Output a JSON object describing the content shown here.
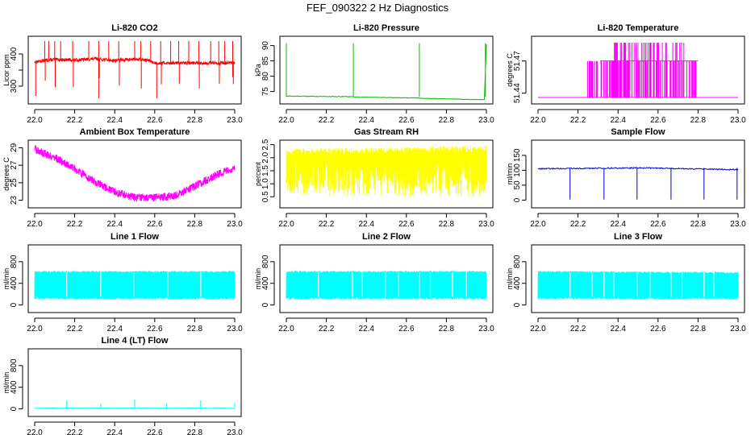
{
  "main_title": "FEF_090322  2 Hz Diagnostics",
  "chart_data": [
    {
      "type": "line",
      "title": "Li-820 CO2",
      "xlabel": "",
      "ylabel": "Licor ppm",
      "xlim": [
        22.0,
        23.0
      ],
      "ylim": [
        255,
        445
      ],
      "yticks": [
        300,
        350,
        400
      ],
      "ytick_labels": [
        "300",
        "",
        "400"
      ],
      "xticks": [
        22.0,
        22.2,
        22.4,
        22.6,
        22.8,
        23.0
      ],
      "xtick_labels": [
        "22.0",
        "22.2",
        "22.4",
        "22.6",
        "22.8",
        "23.0"
      ],
      "color": "#ff0000",
      "series": [
        {
          "name": "CO2",
          "x": [
            22.0,
            22.05,
            22.1,
            22.2,
            22.3,
            22.4,
            22.5,
            22.57,
            22.6,
            22.7,
            22.8,
            22.9,
            23.0
          ],
          "y": [
            375,
            380,
            383,
            381,
            385,
            380,
            384,
            380,
            372,
            372,
            372,
            372,
            372
          ]
        }
      ]
    },
    {
      "type": "line",
      "title": "Li-820 Pressure",
      "xlabel": "",
      "ylabel": "kPa",
      "xlim": [
        22.0,
        23.0
      ],
      "ylim": [
        72,
        92
      ],
      "yticks": [
        75,
        80,
        85,
        90
      ],
      "ytick_labels": [
        "75",
        "80",
        "85",
        "90"
      ],
      "xticks": [
        22.0,
        22.2,
        22.4,
        22.6,
        22.8,
        23.0
      ],
      "xtick_labels": [
        "22.0",
        "22.2",
        "22.4",
        "22.6",
        "22.8",
        "23.0"
      ],
      "color": "#00bb00",
      "series": [
        {
          "name": "Pressure",
          "x": [
            22.0,
            22.33,
            22.34,
            22.66,
            22.67,
            22.99,
            23.0
          ],
          "y": [
            73.5,
            73.3,
            73.2,
            72.9,
            72.8,
            72.3,
            90.5
          ]
        }
      ]
    },
    {
      "type": "line",
      "title": "Li-820 Temperature",
      "xlabel": "",
      "ylabel": "degrees C",
      "xlim": [
        22.0,
        23.0
      ],
      "ylim": [
        51.433,
        51.49
      ],
      "yticks": [
        51.44,
        51.47
      ],
      "ytick_labels": [
        "51.44",
        "51.47"
      ],
      "xticks": [
        22.0,
        22.2,
        22.4,
        22.6,
        22.8,
        23.0
      ],
      "xtick_labels": [
        "22.0",
        "22.2",
        "22.4",
        "22.6",
        "22.8",
        "23.0"
      ],
      "color": "#ff00ff",
      "series": [
        {
          "name": "Temperature",
          "x": [
            22.0,
            22.24,
            22.3,
            22.4,
            22.5,
            22.6,
            22.7,
            22.8,
            23.0
          ],
          "y": [
            51.436,
            51.436,
            51.46,
            51.47,
            51.47,
            51.47,
            51.46,
            51.436,
            51.436
          ]
        }
      ]
    },
    {
      "type": "line",
      "title": "Ambient Box Temperature",
      "xlabel": "",
      "ylabel": "degrees C",
      "xlim": [
        22.0,
        23.0
      ],
      "ylim": [
        22.5,
        29.5
      ],
      "yticks": [
        23,
        25,
        27,
        29
      ],
      "ytick_labels": [
        "23",
        "25",
        "27",
        "29"
      ],
      "xticks": [
        22.0,
        22.2,
        22.4,
        22.6,
        22.8,
        23.0
      ],
      "xtick_labels": [
        "22.0",
        "22.2",
        "22.4",
        "22.6",
        "22.8",
        "23.0"
      ],
      "color": "#ff00ff",
      "series": [
        {
          "name": "Box Temp",
          "x": [
            22.0,
            22.1,
            22.2,
            22.3,
            22.4,
            22.5,
            22.6,
            22.7,
            22.8,
            22.9,
            23.0
          ],
          "y": [
            28.8,
            27.9,
            26.6,
            25.1,
            23.9,
            23.3,
            23.3,
            23.5,
            24.6,
            25.8,
            26.7
          ]
        }
      ]
    },
    {
      "type": "line",
      "title": "Gas Stream RH",
      "xlabel": "",
      "ylabel": "percent",
      "xlim": [
        22.0,
        23.0
      ],
      "ylim": [
        0.2,
        2.55
      ],
      "yticks": [
        0.5,
        1.0,
        1.5,
        2.0,
        2.5
      ],
      "ytick_labels": [
        "0.5",
        "1.0",
        "1.5",
        "2.0",
        "2.5"
      ],
      "xticks": [
        22.0,
        22.2,
        22.4,
        22.6,
        22.8,
        23.0
      ],
      "xtick_labels": [
        "22.0",
        "22.2",
        "22.4",
        "22.6",
        "22.8",
        "23.0"
      ],
      "color": "#ffff00",
      "series": [
        {
          "name": "RH",
          "x": [
            22.0,
            23.0
          ],
          "y": [
            2.1,
            2.2
          ]
        }
      ]
    },
    {
      "type": "line",
      "title": "Sample Flow",
      "xlabel": "",
      "ylabel": "ml/min",
      "xlim": [
        22.0,
        23.0
      ],
      "ylim": [
        -15,
        190
      ],
      "yticks": [
        0,
        50,
        100,
        150
      ],
      "ytick_labels": [
        "0",
        "50",
        "100",
        "150"
      ],
      "xticks": [
        22.0,
        22.2,
        22.4,
        22.6,
        22.8,
        23.0
      ],
      "xtick_labels": [
        "22.0",
        "22.2",
        "22.4",
        "22.6",
        "22.8",
        "23.0"
      ],
      "color": "#0000cc",
      "series": [
        {
          "name": "Sample Flow",
          "x": [
            22.0,
            22.5,
            23.0
          ],
          "y": [
            105,
            108,
            102
          ]
        }
      ]
    },
    {
      "type": "line",
      "title": "Line 1 Flow",
      "xlabel": "",
      "ylabel": "ml/min",
      "xlim": [
        22.0,
        23.0
      ],
      "ylim": [
        -80,
        1050
      ],
      "yticks": [
        0,
        400,
        800
      ],
      "ytick_labels": [
        "0",
        "400",
        "800"
      ],
      "xticks": [
        22.0,
        22.2,
        22.4,
        22.6,
        22.8,
        23.0
      ],
      "xtick_labels": [
        "22.0",
        "22.2",
        "22.4",
        "22.6",
        "22.8",
        "23.0"
      ],
      "color": "#00ffff",
      "series": [
        {
          "name": "Line 1",
          "x": [
            22.0,
            23.0
          ],
          "y": [
            600,
            600
          ]
        }
      ]
    },
    {
      "type": "line",
      "title": "Line 2 Flow",
      "xlabel": "",
      "ylabel": "ml/min",
      "xlim": [
        22.0,
        23.0
      ],
      "ylim": [
        -80,
        1050
      ],
      "yticks": [
        0,
        400,
        800
      ],
      "ytick_labels": [
        "0",
        "400",
        "800"
      ],
      "xticks": [
        22.0,
        22.2,
        22.4,
        22.6,
        22.8,
        23.0
      ],
      "xtick_labels": [
        "22.0",
        "22.2",
        "22.4",
        "22.6",
        "22.8",
        "23.0"
      ],
      "color": "#00ffff",
      "series": [
        {
          "name": "Line 2",
          "x": [
            22.0,
            23.0
          ],
          "y": [
            600,
            600
          ]
        }
      ]
    },
    {
      "type": "line",
      "title": "Line 3 Flow",
      "xlabel": "",
      "ylabel": "ml/min",
      "xlim": [
        22.0,
        23.0
      ],
      "ylim": [
        -80,
        1050
      ],
      "yticks": [
        0,
        400,
        800
      ],
      "ytick_labels": [
        "0",
        "400",
        "800"
      ],
      "xticks": [
        22.0,
        22.2,
        22.4,
        22.6,
        22.8,
        23.0
      ],
      "xtick_labels": [
        "22.0",
        "22.2",
        "22.4",
        "22.6",
        "22.8",
        "23.0"
      ],
      "color": "#00ffff",
      "series": [
        {
          "name": "Line 3",
          "x": [
            22.0,
            23.0
          ],
          "y": [
            600,
            580
          ]
        }
      ]
    },
    {
      "type": "line",
      "title": "Line 4 (LT) Flow",
      "xlabel": "",
      "ylabel": "ml/min",
      "xlim": [
        22.0,
        23.0
      ],
      "ylim": [
        -80,
        1050
      ],
      "yticks": [
        0,
        400,
        800
      ],
      "ytick_labels": [
        "0",
        "400",
        "800"
      ],
      "xticks": [
        22.0,
        22.2,
        22.4,
        22.6,
        22.8,
        23.0
      ],
      "xtick_labels": [
        "22.0",
        "22.2",
        "22.4",
        "22.6",
        "22.8",
        "23.0"
      ],
      "color": "#00ffff",
      "series": [
        {
          "name": "Line 4",
          "x": [
            22.0,
            22.16,
            22.33,
            22.5,
            22.66,
            22.83,
            23.0
          ],
          "y": [
            10,
            160,
            100,
            170,
            100,
            160,
            120
          ]
        }
      ]
    }
  ]
}
